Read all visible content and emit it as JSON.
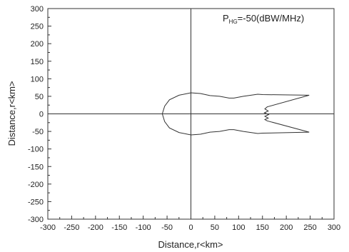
{
  "chart_data": {
    "type": "line",
    "title": "",
    "xlabel": "Distance,r<km>",
    "ylabel": "Distance,r<km>",
    "xlim": [
      -300,
      300
    ],
    "ylim": [
      -300,
      300
    ],
    "x_ticks": [
      -300,
      -250,
      -200,
      -150,
      -100,
      -50,
      0,
      50,
      100,
      150,
      200,
      250,
      300
    ],
    "y_ticks": [
      -300,
      -250,
      -200,
      -150,
      -100,
      -50,
      0,
      50,
      100,
      150,
      200,
      250,
      300
    ],
    "x_tick_labels": [
      "-300",
      "-250",
      "-200",
      "-150",
      "-100",
      "-50",
      "0",
      "50",
      "100",
      "150",
      "200",
      "250",
      "300"
    ],
    "y_tick_labels": [
      "-300",
      "-250",
      "-200",
      "-150",
      "-100",
      "-50",
      "0",
      "50",
      "100",
      "150",
      "200",
      "250",
      "300"
    ],
    "grid": false,
    "legend": "none",
    "zero_lines": true,
    "annotation": {
      "main": "P",
      "subscript": "HG",
      "rest": "=-50(dBW/MHz)"
    },
    "series": [
      {
        "color": "#333333",
        "x": [
          0,
          20,
          40,
          60,
          80,
          90,
          110,
          135,
          140,
          150,
          248,
          160,
          155,
          162,
          154,
          163,
          155,
          162,
          155,
          160,
          248,
          150,
          140,
          135,
          110,
          90,
          80,
          60,
          40,
          20,
          0,
          -25,
          -45,
          -55,
          -60,
          -55,
          -45,
          -25,
          0
        ],
        "y": [
          60,
          58,
          52,
          50,
          45,
          45,
          50,
          55,
          56,
          55,
          53,
          20,
          14,
          8,
          3,
          -2,
          -7,
          -12,
          -16,
          -20,
          -52,
          -55,
          -56,
          -55,
          -50,
          -45,
          -45,
          -50,
          -52,
          -58,
          -60,
          -53,
          -40,
          -22,
          0,
          22,
          40,
          53,
          60
        ]
      }
    ]
  }
}
